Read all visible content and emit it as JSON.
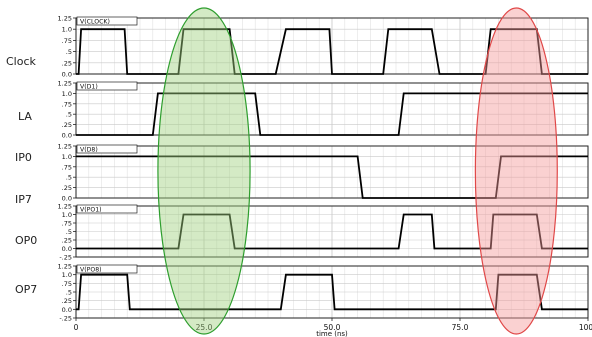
{
  "side_labels": [
    {
      "id": "clock",
      "text": "Clock"
    },
    {
      "id": "la",
      "text": "LA"
    },
    {
      "id": "ip0",
      "text": "IP0"
    },
    {
      "id": "ip7",
      "text": "IP7"
    },
    {
      "id": "op0",
      "text": "OP0"
    },
    {
      "id": "op7",
      "text": "OP7"
    }
  ],
  "x_axis": {
    "label": "time (ns)",
    "ticks": [
      "0",
      "25.0",
      "50.0",
      "75.0",
      "100"
    ]
  },
  "panels": [
    {
      "name": "clock-panel",
      "title": "V(CLOCK)",
      "ticks": [
        "1.25",
        "1.0",
        ".75",
        ".5",
        ".25",
        "0.0"
      ],
      "ymin": 0,
      "ymax": 1.25,
      "trace": [
        [
          0,
          0
        ],
        [
          0.5,
          0
        ],
        [
          1,
          1
        ],
        [
          9.5,
          1
        ],
        [
          10,
          0
        ],
        [
          20,
          0
        ],
        [
          21,
          1
        ],
        [
          30,
          1
        ],
        [
          31,
          0
        ],
        [
          39,
          0
        ],
        [
          41,
          1
        ],
        [
          49.5,
          1
        ],
        [
          50,
          0
        ],
        [
          60,
          0
        ],
        [
          61,
          1
        ],
        [
          69.5,
          1
        ],
        [
          71,
          0
        ],
        [
          80,
          0
        ],
        [
          81,
          1
        ],
        [
          90,
          1
        ],
        [
          91,
          0
        ],
        [
          100,
          0
        ]
      ]
    },
    {
      "name": "la-panel",
      "title": "V(D1)",
      "ticks": [
        "1.25",
        "1.0",
        ".75",
        ".5",
        ".25",
        "0.0"
      ],
      "ymin": 0,
      "ymax": 1.25,
      "trace": [
        [
          0,
          0
        ],
        [
          15,
          0
        ],
        [
          16,
          1
        ],
        [
          35,
          1
        ],
        [
          36,
          0
        ],
        [
          63,
          0
        ],
        [
          64,
          1
        ],
        [
          100,
          1
        ]
      ]
    },
    {
      "name": "ip-panel",
      "title": "V(D8)",
      "ticks": [
        "1.25",
        "1.0",
        ".75",
        ".5",
        ".25",
        "0.0"
      ],
      "ymin": 0,
      "ymax": 1.25,
      "trace": [
        [
          0,
          1
        ],
        [
          55,
          1
        ],
        [
          56,
          0
        ],
        [
          82,
          0
        ],
        [
          83,
          1
        ],
        [
          100,
          1
        ]
      ]
    },
    {
      "name": "op0-panel",
      "title": "V(PO1)",
      "ticks": [
        "1.25",
        "1.0",
        ".75",
        ".5",
        ".25",
        "0.0",
        "-.25"
      ],
      "ymin": -0.25,
      "ymax": 1.25,
      "trace": [
        [
          0,
          0
        ],
        [
          20,
          0
        ],
        [
          21,
          1
        ],
        [
          30,
          1
        ],
        [
          31,
          0
        ],
        [
          63,
          0
        ],
        [
          64,
          1
        ],
        [
          69.5,
          1
        ],
        [
          70,
          0
        ],
        [
          81,
          0
        ],
        [
          81.5,
          1
        ],
        [
          90,
          1
        ],
        [
          91,
          0
        ],
        [
          100,
          0
        ]
      ]
    },
    {
      "name": "op7-panel",
      "title": "V(PO8)",
      "ticks": [
        "1.25",
        "1.0",
        ".75",
        ".5",
        ".25",
        "0.0",
        "-.25"
      ],
      "ymin": -0.25,
      "ymax": 1.25,
      "trace": [
        [
          0,
          0
        ],
        [
          0.5,
          0
        ],
        [
          1,
          1
        ],
        [
          10,
          1
        ],
        [
          10.5,
          0
        ],
        [
          40,
          0
        ],
        [
          41,
          1
        ],
        [
          50,
          1
        ],
        [
          50.5,
          0
        ],
        [
          82,
          0
        ],
        [
          82.5,
          1
        ],
        [
          90,
          1
        ],
        [
          91,
          0
        ],
        [
          100,
          0
        ]
      ]
    }
  ],
  "highlights": [
    {
      "name": "green-highlight-ellipse",
      "fill": "#9fd07e",
      "stroke": "#2e9e2e",
      "opacity": 0.45,
      "x_center": 25,
      "x_halfwidth": 9
    },
    {
      "name": "red-highlight-ellipse",
      "fill": "#f39a9a",
      "stroke": "#e04848",
      "opacity": 0.45,
      "x_center": 86,
      "x_halfwidth": 8
    }
  ]
}
